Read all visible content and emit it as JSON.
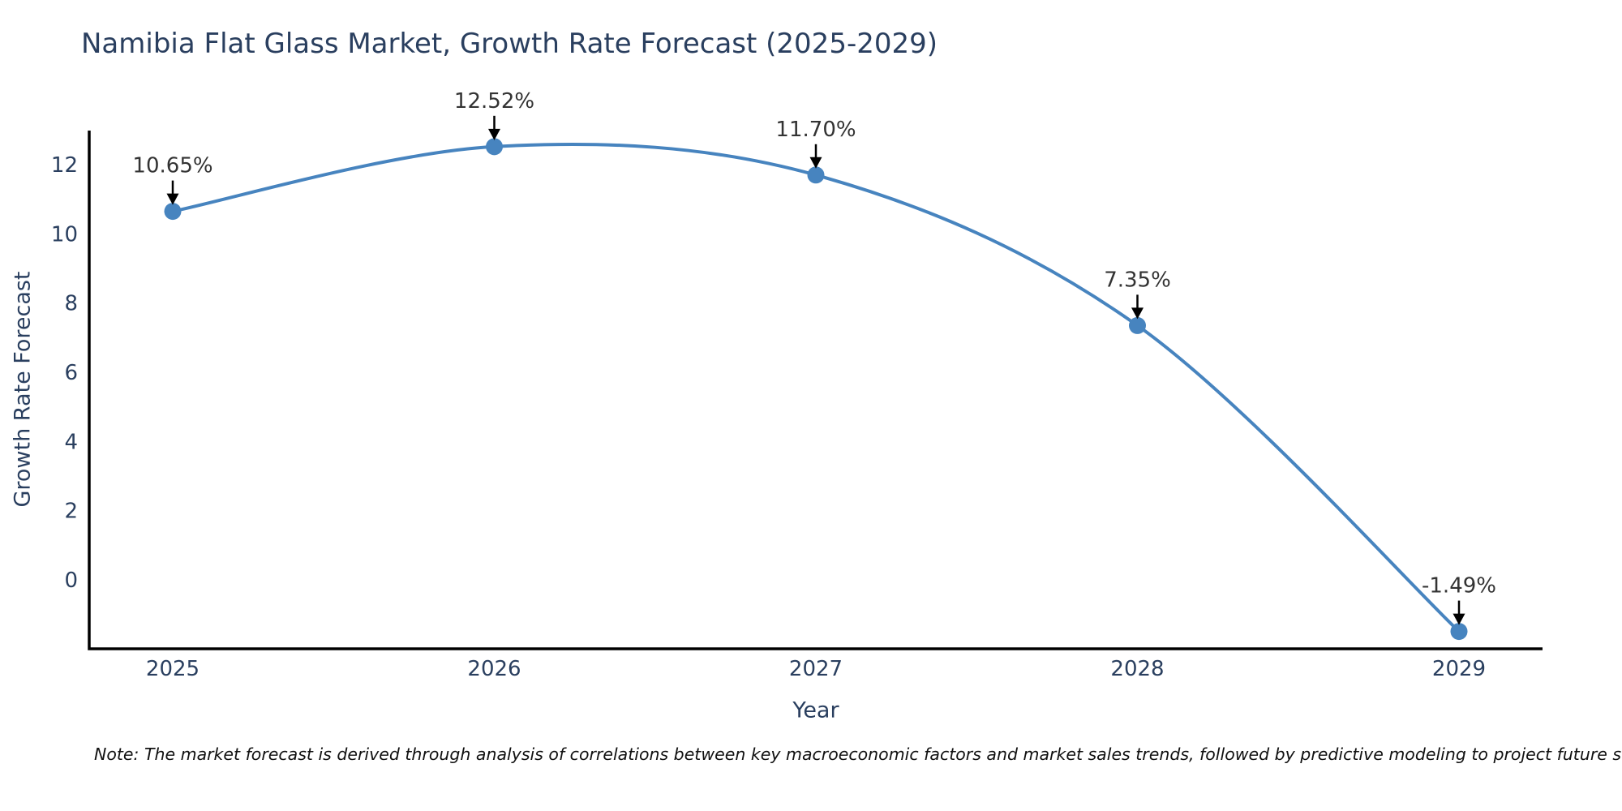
{
  "chart_data": {
    "type": "line",
    "title": "Namibia Flat Glass Market, Growth Rate Forecast (2025-2029)",
    "xlabel": "Year",
    "ylabel": "Growth Rate Forecast",
    "x": [
      2025,
      2026,
      2027,
      2028,
      2029
    ],
    "xticks": [
      "2025",
      "2026",
      "2027",
      "2028",
      "2029"
    ],
    "series": [
      {
        "name": "Growth Rate Forecast",
        "values": [
          10.65,
          12.52,
          11.7,
          7.35,
          -1.49
        ]
      }
    ],
    "point_labels": [
      "10.65%",
      "12.52%",
      "11.70%",
      "7.35%",
      "-1.49%"
    ],
    "yticks": [
      0,
      2,
      4,
      6,
      8,
      10,
      12
    ],
    "ylim": [
      -2,
      13
    ],
    "xlim": [
      2024.74,
      2029.26
    ],
    "grid": false,
    "legend_position": "none",
    "line_shape": "spline",
    "marker": "circle",
    "annotations_arrow_direction": "down",
    "colors": {
      "line": "#4784bf",
      "marker": "#4784bf",
      "axis_line": "#000000",
      "axis_text": "#2a3f5f",
      "annotation_text": "#333333",
      "arrow": "#000000",
      "note_text": "#111111",
      "background": "#ffffff"
    },
    "note": "Note: The market forecast is derived through analysis of correlations between key macroeconomic factors and market sales trends, followed by predictive modeling to project future sales."
  }
}
